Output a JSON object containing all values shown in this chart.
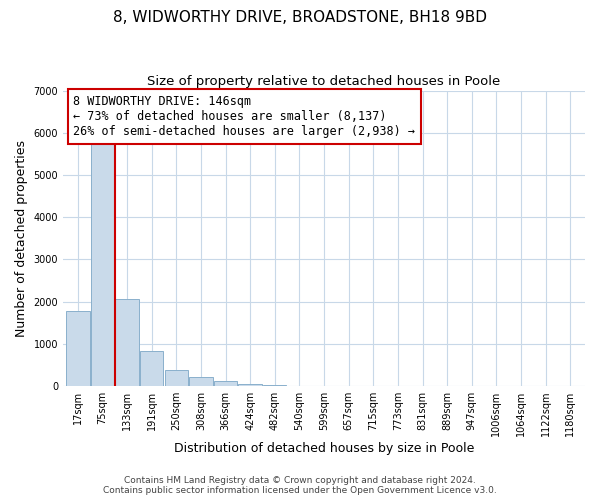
{
  "title": "8, WIDWORTHY DRIVE, BROADSTONE, BH18 9BD",
  "subtitle": "Size of property relative to detached houses in Poole",
  "xlabel": "Distribution of detached houses by size in Poole",
  "ylabel": "Number of detached properties",
  "bar_labels": [
    "17sqm",
    "75sqm",
    "133sqm",
    "191sqm",
    "250sqm",
    "308sqm",
    "366sqm",
    "424sqm",
    "482sqm",
    "540sqm",
    "599sqm",
    "657sqm",
    "715sqm",
    "773sqm",
    "831sqm",
    "889sqm",
    "947sqm",
    "1006sqm",
    "1064sqm",
    "1122sqm",
    "1180sqm"
  ],
  "bar_values": [
    1780,
    5750,
    2060,
    830,
    370,
    225,
    110,
    55,
    20,
    8,
    4,
    2,
    1,
    0,
    0,
    0,
    0,
    0,
    0,
    0,
    0
  ],
  "bar_color": "#c9daea",
  "bar_edge_color": "#8ab0cc",
  "vline_x": 1.5,
  "vline_color": "#cc0000",
  "annotation_text": "8 WIDWORTHY DRIVE: 146sqm\n← 73% of detached houses are smaller (8,137)\n26% of semi-detached houses are larger (2,938) →",
  "annotation_box_color": "#ffffff",
  "annotation_box_edge": "#cc0000",
  "ylim": [
    0,
    7000
  ],
  "yticks": [
    0,
    1000,
    2000,
    3000,
    4000,
    5000,
    6000,
    7000
  ],
  "footer1": "Contains HM Land Registry data © Crown copyright and database right 2024.",
  "footer2": "Contains public sector information licensed under the Open Government Licence v3.0.",
  "bg_color": "#ffffff",
  "grid_color": "#c8d8e8",
  "title_fontsize": 11,
  "subtitle_fontsize": 9.5,
  "axis_label_fontsize": 9,
  "tick_fontsize": 7,
  "annotation_fontsize": 8.5,
  "footer_fontsize": 6.5
}
